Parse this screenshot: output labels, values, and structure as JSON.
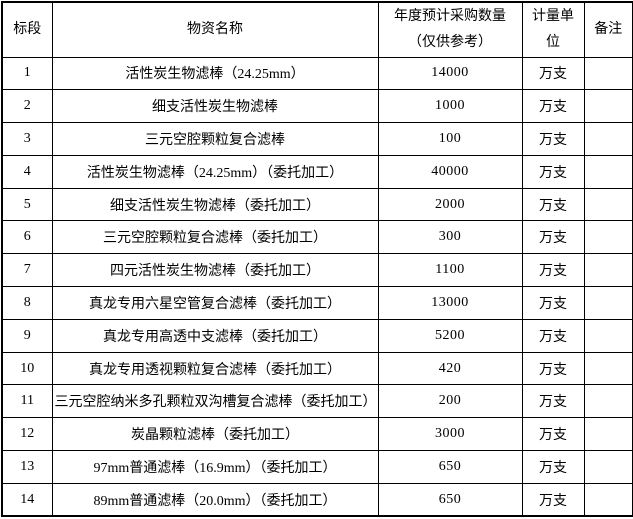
{
  "table": {
    "headers": {
      "section": "标段",
      "material_name": "物资名称",
      "quantity_line1": "年度预计采购数量",
      "quantity_line2": "（仅供参考）",
      "unit_line1": "计量单",
      "unit_line2": "位",
      "remark": "备注"
    },
    "rows": [
      {
        "section": "1",
        "name": "活性炭生物滤棒（24.25mm）",
        "qty": "14000",
        "unit": "万支",
        "remark": ""
      },
      {
        "section": "2",
        "name": "细支活性炭生物滤棒",
        "qty": "1000",
        "unit": "万支",
        "remark": ""
      },
      {
        "section": "3",
        "name": "三元空腔颗粒复合滤棒",
        "qty": "100",
        "unit": "万支",
        "remark": ""
      },
      {
        "section": "4",
        "name": "活性炭生物滤棒（24.25mm）（委托加工）",
        "qty": "40000",
        "unit": "万支",
        "remark": ""
      },
      {
        "section": "5",
        "name": "细支活性炭生物滤棒（委托加工）",
        "qty": "2000",
        "unit": "万支",
        "remark": ""
      },
      {
        "section": "6",
        "name": "三元空腔颗粒复合滤棒（委托加工）",
        "qty": "300",
        "unit": "万支",
        "remark": ""
      },
      {
        "section": "7",
        "name": "四元活性炭生物滤棒（委托加工）",
        "qty": "1100",
        "unit": "万支",
        "remark": ""
      },
      {
        "section": "8",
        "name": "真龙专用六星空管复合滤棒（委托加工）",
        "qty": "13000",
        "unit": "万支",
        "remark": ""
      },
      {
        "section": "9",
        "name": "真龙专用高透中支滤棒（委托加工）",
        "qty": "5200",
        "unit": "万支",
        "remark": ""
      },
      {
        "section": "10",
        "name": "真龙专用透视颗粒复合滤棒（委托加工）",
        "qty": "420",
        "unit": "万支",
        "remark": ""
      },
      {
        "section": "11",
        "name": "三元空腔纳米多孔颗粒双沟槽复合滤棒（委托加工）",
        "qty": "200",
        "unit": "万支",
        "remark": ""
      },
      {
        "section": "12",
        "name": "炭晶颗粒滤棒（委托加工）",
        "qty": "3000",
        "unit": "万支",
        "remark": ""
      },
      {
        "section": "13",
        "name": "97mm普通滤棒（16.9mm）（委托加工）",
        "qty": "650",
        "unit": "万支",
        "remark": ""
      },
      {
        "section": "14",
        "name": "89mm普通滤棒（20.0mm）（委托加工）",
        "qty": "650",
        "unit": "万支",
        "remark": ""
      }
    ]
  },
  "colors": {
    "border": "#000000",
    "text": "#000000",
    "background": "#ffffff"
  }
}
